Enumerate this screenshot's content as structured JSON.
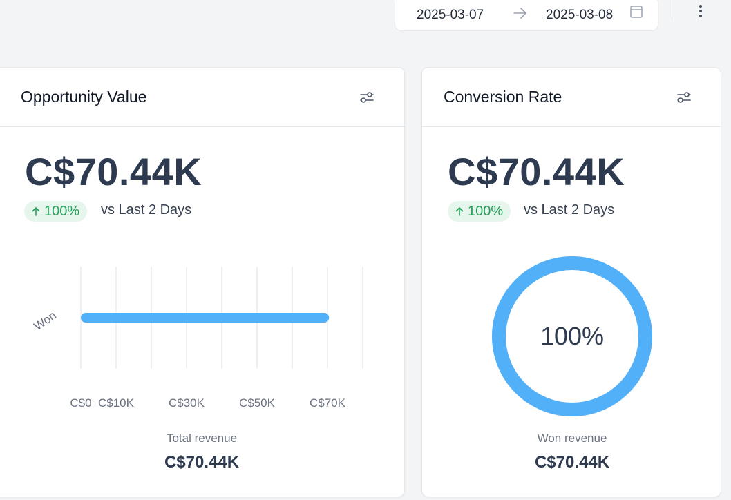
{
  "header": {
    "date_start": "2025-03-07",
    "date_end": "2025-03-08",
    "icons": {
      "arrow": "arrow-right-icon",
      "calendar": "calendar-icon",
      "more": "more-vertical-icon"
    }
  },
  "cards": {
    "opportunity": {
      "title": "Opportunity Value",
      "value": "C$70.44K",
      "trend_pct": "100%",
      "trend_text": "vs Last 2 Days",
      "foot_label": "Total revenue",
      "foot_value": "C$70.44K"
    },
    "conversion": {
      "title": "Conversion Rate",
      "value": "C$70.44K",
      "trend_pct": "100%",
      "trend_text": "vs Last 2 Days",
      "foot_label": "Won revenue",
      "foot_value": "C$70.44K"
    }
  },
  "colors": {
    "accent": "#52b0f9",
    "trend_green": "#22a05a",
    "trend_bg": "#e7f6ec",
    "value": "#2d3a4f"
  },
  "chart_data": [
    {
      "type": "bar",
      "orientation": "horizontal",
      "categories": [
        "Won"
      ],
      "values": [
        70.44
      ],
      "unit": "C$K",
      "x_tick_labels": [
        "C$0",
        "C$10K",
        "C$30K",
        "C$50K",
        "C$70K"
      ],
      "x_ticks": [
        0,
        10,
        30,
        50,
        70
      ],
      "xlim": [
        0,
        80
      ],
      "gridlines": [
        0,
        10,
        20,
        30,
        40,
        50,
        60,
        70,
        80
      ],
      "grid": true
    },
    {
      "type": "pie",
      "style": "donut",
      "values": [
        100
      ],
      "center_label": "100%"
    }
  ]
}
